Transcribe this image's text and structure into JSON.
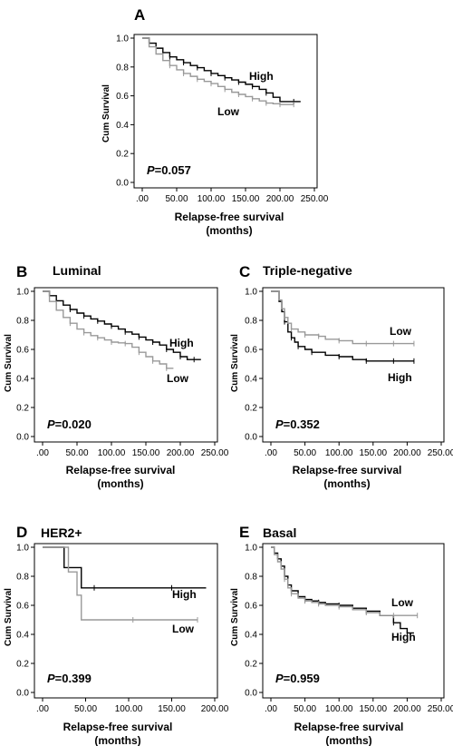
{
  "figure": {
    "panels": [
      {
        "letter": "A",
        "title": "",
        "p_italic": "P",
        "p_value": "=0.057"
      },
      {
        "letter": "B",
        "title": "Luminal",
        "p_italic": "P",
        "p_value": "=0.020"
      },
      {
        "letter": "C",
        "title": "Triple-negative",
        "p_italic": "P",
        "p_value": "=0.352"
      },
      {
        "letter": "D",
        "title": "HER2+",
        "p_italic": "P",
        "p_value": "=0.399"
      },
      {
        "letter": "E",
        "title": "Basal",
        "p_italic": "P",
        "p_value": "=0.959"
      }
    ]
  },
  "chart_data": [
    {
      "type": "line",
      "step": true,
      "panel": "A",
      "xlabel": "Relapse-free survival\n(months)",
      "ylabel": "Cum Survival",
      "xlim": [
        0,
        250
      ],
      "ylim": [
        0,
        1.0
      ],
      "xticks": [
        ".00",
        "50.00",
        "100.00",
        "150.00",
        "200.00",
        "250.00"
      ],
      "yticks": [
        "0.0",
        "0.2",
        "0.4",
        "0.6",
        "0.8",
        "1.0"
      ],
      "series": [
        {
          "name": "High",
          "color": "#000000",
          "x": [
            0,
            10,
            20,
            30,
            40,
            50,
            60,
            70,
            80,
            90,
            100,
            110,
            120,
            130,
            140,
            150,
            160,
            170,
            180,
            190,
            200,
            210,
            220,
            230
          ],
          "y": [
            1.0,
            0.965,
            0.93,
            0.9,
            0.87,
            0.85,
            0.83,
            0.81,
            0.795,
            0.775,
            0.755,
            0.74,
            0.725,
            0.71,
            0.695,
            0.68,
            0.665,
            0.645,
            0.62,
            0.59,
            0.56,
            0.56,
            0.56,
            0.56
          ]
        },
        {
          "name": "Low",
          "color": "#999999",
          "x": [
            0,
            10,
            20,
            30,
            40,
            50,
            60,
            70,
            80,
            90,
            100,
            110,
            120,
            130,
            140,
            150,
            160,
            170,
            180,
            190,
            200,
            210,
            220
          ],
          "y": [
            1.0,
            0.94,
            0.89,
            0.845,
            0.81,
            0.78,
            0.755,
            0.735,
            0.715,
            0.7,
            0.685,
            0.665,
            0.645,
            0.625,
            0.61,
            0.595,
            0.58,
            0.565,
            0.55,
            0.545,
            0.54,
            0.54,
            0.54
          ]
        }
      ]
    },
    {
      "type": "line",
      "step": true,
      "panel": "B",
      "xlabel": "Relapse-free survival\n(months)",
      "ylabel": "Cum Survival",
      "xlim": [
        0,
        250
      ],
      "ylim": [
        0,
        1.0
      ],
      "xticks": [
        ".00",
        "50.00",
        "100.00",
        "150.00",
        "200.00",
        "250.00"
      ],
      "yticks": [
        "0.0",
        "0.2",
        "0.4",
        "0.6",
        "0.8",
        "1.0"
      ],
      "series": [
        {
          "name": "High",
          "color": "#000000",
          "x": [
            0,
            10,
            20,
            30,
            40,
            50,
            60,
            70,
            80,
            90,
            100,
            110,
            120,
            130,
            140,
            150,
            160,
            170,
            180,
            190,
            200,
            210,
            220,
            230
          ],
          "y": [
            1.0,
            0.97,
            0.935,
            0.905,
            0.875,
            0.85,
            0.83,
            0.81,
            0.795,
            0.775,
            0.76,
            0.74,
            0.72,
            0.705,
            0.685,
            0.665,
            0.65,
            0.63,
            0.6,
            0.58,
            0.55,
            0.53,
            0.53,
            0.53
          ]
        },
        {
          "name": "Low",
          "color": "#999999",
          "x": [
            0,
            10,
            20,
            30,
            40,
            50,
            60,
            70,
            80,
            90,
            100,
            110,
            120,
            130,
            140,
            150,
            160,
            170,
            180,
            190
          ],
          "y": [
            1.0,
            0.93,
            0.87,
            0.82,
            0.78,
            0.74,
            0.715,
            0.695,
            0.68,
            0.665,
            0.65,
            0.645,
            0.64,
            0.615,
            0.58,
            0.55,
            0.52,
            0.5,
            0.47,
            0.47
          ]
        }
      ]
    },
    {
      "type": "line",
      "step": true,
      "panel": "C",
      "xlabel": "Relapse-free survival\n(months)",
      "ylabel": "Cum Survival",
      "xlim": [
        0,
        250
      ],
      "ylim": [
        0,
        1.0
      ],
      "xticks": [
        ".00",
        "50.00",
        "100.00",
        "150.00",
        "200.00",
        "250.00"
      ],
      "yticks": [
        "0.0",
        "0.2",
        "0.4",
        "0.6",
        "0.8",
        "1.0"
      ],
      "series": [
        {
          "name": "High",
          "color": "#000000",
          "x": [
            0,
            8,
            12,
            16,
            20,
            25,
            30,
            35,
            40,
            50,
            60,
            80,
            100,
            120,
            140,
            160,
            180,
            200,
            210
          ],
          "y": [
            1.0,
            1.0,
            0.93,
            0.86,
            0.79,
            0.72,
            0.68,
            0.65,
            0.62,
            0.6,
            0.58,
            0.56,
            0.55,
            0.53,
            0.52,
            0.52,
            0.52,
            0.52,
            0.52
          ]
        },
        {
          "name": "Low",
          "color": "#999999",
          "x": [
            0,
            8,
            12,
            16,
            20,
            25,
            30,
            40,
            50,
            60,
            70,
            80,
            100,
            120,
            140,
            160,
            180,
            200,
            210
          ],
          "y": [
            1.0,
            1.0,
            0.94,
            0.88,
            0.82,
            0.78,
            0.74,
            0.72,
            0.7,
            0.7,
            0.69,
            0.67,
            0.66,
            0.64,
            0.64,
            0.64,
            0.64,
            0.64,
            0.64
          ]
        }
      ]
    },
    {
      "type": "line",
      "step": true,
      "panel": "D",
      "xlabel": "Relapse-free survival\n(months)",
      "ylabel": "Cum Survival",
      "xlim": [
        0,
        200
      ],
      "ylim": [
        0,
        1.0
      ],
      "xticks": [
        ".00",
        "50.00",
        "100.00",
        "150.00",
        "200.00"
      ],
      "yticks": [
        "0.0",
        "0.2",
        "0.4",
        "0.6",
        "0.8",
        "1.0"
      ],
      "series": [
        {
          "name": "High",
          "color": "#000000",
          "x": [
            0,
            25,
            35,
            45,
            60,
            100,
            150,
            190
          ],
          "y": [
            1.0,
            0.86,
            0.86,
            0.72,
            0.72,
            0.72,
            0.72,
            0.72
          ]
        },
        {
          "name": "Low",
          "color": "#999999",
          "x": [
            0,
            30,
            40,
            45,
            105,
            150,
            180
          ],
          "y": [
            1.0,
            0.83,
            0.67,
            0.5,
            0.5,
            0.5,
            0.5
          ]
        }
      ]
    },
    {
      "type": "line",
      "step": true,
      "panel": "E",
      "xlabel": "Relapse-free survival\n(months)",
      "ylabel": "Cum Survival",
      "xlim": [
        0,
        250
      ],
      "ylim": [
        0,
        1.0
      ],
      "xticks": [
        ".00",
        "50.00",
        "100.00",
        "150.00",
        "200.00",
        "250.00"
      ],
      "yticks": [
        "0.0",
        "0.2",
        "0.4",
        "0.6",
        "0.8",
        "1.0"
      ],
      "series": [
        {
          "name": "High",
          "color": "#000000",
          "x": [
            0,
            5,
            10,
            15,
            20,
            25,
            30,
            40,
            50,
            60,
            70,
            80,
            100,
            120,
            140,
            160,
            180,
            190,
            200,
            210
          ],
          "y": [
            1.0,
            0.96,
            0.92,
            0.87,
            0.8,
            0.74,
            0.7,
            0.66,
            0.64,
            0.63,
            0.62,
            0.61,
            0.6,
            0.58,
            0.56,
            0.53,
            0.48,
            0.44,
            0.41,
            0.41
          ]
        },
        {
          "name": "Low",
          "color": "#999999",
          "x": [
            0,
            5,
            10,
            15,
            20,
            25,
            30,
            40,
            50,
            60,
            70,
            80,
            100,
            120,
            140,
            160,
            180,
            200,
            215
          ],
          "y": [
            1.0,
            0.95,
            0.9,
            0.85,
            0.78,
            0.72,
            0.68,
            0.65,
            0.63,
            0.62,
            0.61,
            0.6,
            0.59,
            0.57,
            0.55,
            0.53,
            0.53,
            0.53,
            0.53
          ]
        }
      ]
    }
  ]
}
